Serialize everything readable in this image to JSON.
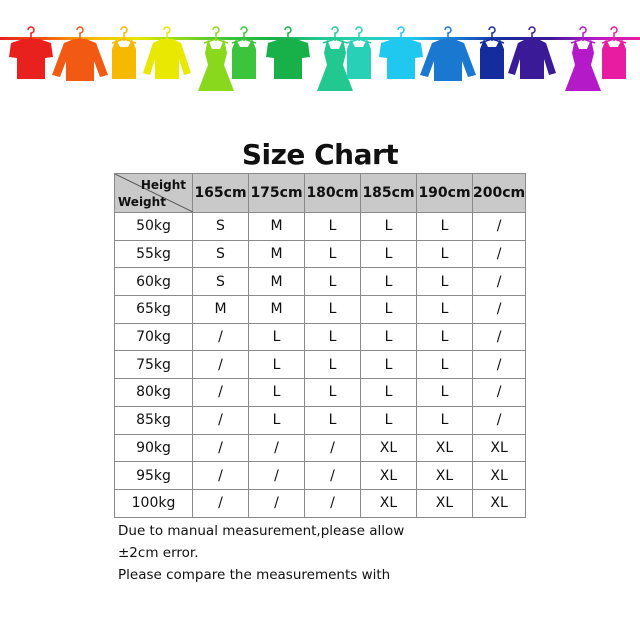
{
  "banner": {
    "icon": "clothes-hanging-on-rainbow-rod",
    "colors": [
      "#e8201e",
      "#f25a14",
      "#f7b800",
      "#e8e800",
      "#8ad81e",
      "#3cc43c",
      "#18b048",
      "#22c890",
      "#28d0b8",
      "#20c8f0",
      "#1a78d0",
      "#142c9c",
      "#3a1a96",
      "#b41ac8",
      "#e81ca0"
    ]
  },
  "title": "Size Chart",
  "table": {
    "corner_top": "Height",
    "corner_bottom": "Weight",
    "header_bg": "#c9c9c9",
    "columns": [
      "165cm",
      "175cm",
      "180cm",
      "185cm",
      "190cm",
      "200cm"
    ],
    "rows": [
      {
        "weight": "50kg",
        "sizes": [
          "S",
          "M",
          "L",
          "L",
          "L",
          "/"
        ]
      },
      {
        "weight": "55kg",
        "sizes": [
          "S",
          "M",
          "L",
          "L",
          "L",
          "/"
        ]
      },
      {
        "weight": "60kg",
        "sizes": [
          "S",
          "M",
          "L",
          "L",
          "L",
          "/"
        ]
      },
      {
        "weight": "65kg",
        "sizes": [
          "M",
          "M",
          "L",
          "L",
          "L",
          "/"
        ]
      },
      {
        "weight": "70kg",
        "sizes": [
          "/",
          "L",
          "L",
          "L",
          "L",
          "/"
        ]
      },
      {
        "weight": "75kg",
        "sizes": [
          "/",
          "L",
          "L",
          "L",
          "L",
          "/"
        ]
      },
      {
        "weight": "80kg",
        "sizes": [
          "/",
          "L",
          "L",
          "L",
          "L",
          "/"
        ]
      },
      {
        "weight": "85kg",
        "sizes": [
          "/",
          "L",
          "L",
          "L",
          "L",
          "/"
        ]
      },
      {
        "weight": "90kg",
        "sizes": [
          "/",
          "/",
          "/",
          "XL",
          "XL",
          "XL"
        ]
      },
      {
        "weight": "95kg",
        "sizes": [
          "/",
          "/",
          "/",
          "XL",
          "XL",
          "XL"
        ]
      },
      {
        "weight": "100kg",
        "sizes": [
          "/",
          "/",
          "/",
          "XL",
          "XL",
          "XL"
        ]
      }
    ]
  },
  "note": {
    "line1": "Due to manual measurement,please allow",
    "line2": "±2cm error.",
    "line3": "Please compare the measurements with"
  }
}
